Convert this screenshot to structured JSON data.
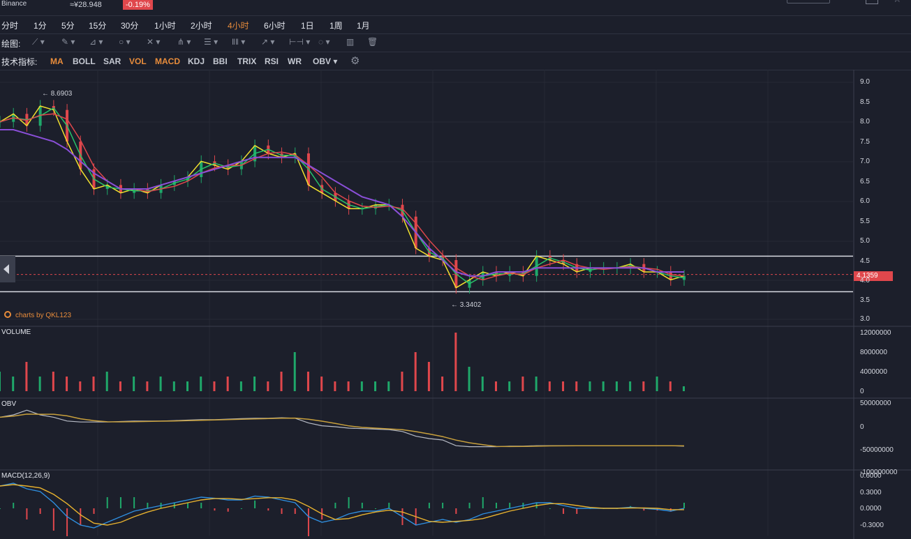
{
  "header": {
    "exchange": "Binance",
    "cny_price": "≈¥28.948",
    "change": "-0.19%"
  },
  "timeframes": [
    "分时",
    "1分",
    "5分",
    "15分",
    "30分",
    "1小时",
    "2小时",
    "4小时",
    "6小时",
    "1日",
    "1周",
    "1月"
  ],
  "active_timeframe": "4小时",
  "drawing": {
    "label": "绘图:",
    "tools": [
      "line-tool-icon",
      "pen-tool-icon",
      "ray-tool-icon",
      "circle-tool-icon",
      "cross-tool-icon",
      "pitchfork-tool-icon",
      "fib-tool-icon",
      "channel-tool-icon",
      "arrow-tool-icon",
      "measure-tool-icon",
      "text-tool-icon",
      "chart-icon",
      "trash-icon"
    ]
  },
  "indicators": {
    "label": "技术指标:",
    "items": [
      "MA",
      "BOLL",
      "SAR",
      "VOL",
      "MACD",
      "KDJ",
      "BBI",
      "TRIX",
      "RSI",
      "WR",
      "OBV"
    ],
    "active": [
      "MA",
      "VOL",
      "MACD"
    ]
  },
  "colors": {
    "background": "#1c1f2b",
    "accent": "#e88c3b",
    "up": "#1fa86a",
    "down": "#e0474c",
    "ma_fast": "#f2e12e",
    "ma_mid": "#27c26a",
    "ma_slow": "#e0474c",
    "ma_long": "#8a4fd8",
    "obv": "#b8bcc6",
    "obv_ma": "#c8a03c",
    "macd_dif": "#2f8fe0",
    "macd_dea": "#e8b22e"
  },
  "price_panel": {
    "axis_labels": [
      "9.0",
      "8.5",
      "8.0",
      "7.5",
      "7.0",
      "6.5",
      "6.0",
      "5.5",
      "5.0",
      "4.5",
      "4.0",
      "3.5",
      "3.0"
    ],
    "high_annotation": "← 8.6903",
    "low_annotation": "← 3.3402",
    "current_price": "4.1359",
    "watermark": "charts by QKL123"
  },
  "volume_panel": {
    "title": "VOLUME",
    "axis_labels": [
      "12000000",
      "8000000",
      "4000000",
      "0"
    ]
  },
  "obv_panel": {
    "title": "OBV",
    "axis_labels": [
      "50000000",
      "0",
      "-50000000",
      "-100000000"
    ]
  },
  "macd_panel": {
    "title": "MACD(12,26,9)",
    "axis_labels": [
      "0.6000",
      "0.3000",
      "0.0000",
      "-0.3000"
    ]
  },
  "chart_data": {
    "type": "line",
    "title": "",
    "series": [
      {
        "values": [
          8.0,
          8.2,
          7.9,
          8.4,
          8.3,
          7.5,
          6.8,
          6.3,
          6.4,
          6.2,
          6.3,
          6.2,
          6.4,
          6.5,
          6.6,
          7.0,
          6.9,
          6.8,
          7.0,
          7.4,
          7.2,
          7.1,
          7.2,
          6.4,
          6.2,
          6.0,
          5.8,
          5.8,
          5.9,
          5.9,
          5.6,
          4.8,
          4.6,
          4.5,
          3.8,
          4.0,
          4.2,
          4.1,
          4.2,
          4.1,
          4.6,
          4.5,
          4.4,
          4.2,
          4.3,
          4.3,
          4.3,
          4.4,
          4.2,
          4.2,
          4.0,
          4.1
        ]
      },
      {
        "values": [
          7.8,
          7.8,
          7.7,
          7.6,
          7.5,
          7.3,
          7.0,
          6.7,
          6.5,
          6.3,
          6.3,
          6.3,
          6.4,
          6.5,
          6.6,
          6.7,
          6.8,
          6.9,
          7.0,
          7.1,
          7.1,
          7.1,
          7.1,
          6.9,
          6.7,
          6.5,
          6.3,
          6.1,
          6.0,
          5.9,
          5.6,
          5.2,
          4.8,
          4.5,
          4.2,
          4.1,
          4.1,
          4.2,
          4.2,
          4.2,
          4.3,
          4.3,
          4.3,
          4.3,
          4.3,
          4.3,
          4.3,
          4.3,
          4.3,
          4.2,
          4.2,
          4.2
        ]
      }
    ],
    "high": 8.6903,
    "low": 3.3402,
    "last": 4.1359,
    "ylim": [
      3.0,
      9.0
    ],
    "horizontal_lines": [
      4.6,
      3.7
    ],
    "volume": [
      4,
      3,
      6,
      3,
      4,
      3,
      2,
      3,
      4,
      2,
      3,
      2,
      3,
      2,
      2,
      3,
      2,
      3,
      2,
      3,
      2,
      4,
      8,
      4,
      3,
      2,
      2,
      2,
      2,
      2,
      4,
      8,
      6,
      3,
      12,
      5,
      3,
      2,
      2,
      3,
      3,
      2,
      2,
      2,
      2,
      2,
      2,
      2,
      2,
      3,
      2,
      1
    ],
    "obv": [
      20,
      25,
      35,
      25,
      20,
      12,
      10,
      10,
      10,
      11,
      12,
      12,
      12,
      13,
      14,
      15,
      15,
      16,
      17,
      18,
      18,
      19,
      18,
      8,
      2,
      0,
      -3,
      -4,
      -5,
      -6,
      -10,
      -20,
      -25,
      -28,
      -40,
      -42,
      -42,
      -42,
      -41,
      -41,
      -40,
      -40,
      -40,
      -40,
      -40,
      -40,
      -40,
      -40,
      -40,
      -40,
      -40,
      -41
    ],
    "macd": [
      0.4,
      0.45,
      0.35,
      0.3,
      0.1,
      -0.15,
      -0.3,
      -0.35,
      -0.25,
      -0.15,
      -0.05,
      0.0,
      0.05,
      0.1,
      0.15,
      0.2,
      0.18,
      0.15,
      0.15,
      0.22,
      0.2,
      0.15,
      0.1,
      -0.15,
      -0.25,
      -0.2,
      -0.1,
      -0.05,
      -0.05,
      0.0,
      -0.15,
      -0.3,
      -0.25,
      -0.2,
      -0.25,
      -0.2,
      -0.1,
      -0.05,
      0.0,
      0.05,
      0.1,
      0.1,
      0.05,
      0.0,
      0.0,
      0.0,
      0.0,
      0.02,
      0.0,
      -0.02,
      -0.05,
      0.0
    ]
  }
}
